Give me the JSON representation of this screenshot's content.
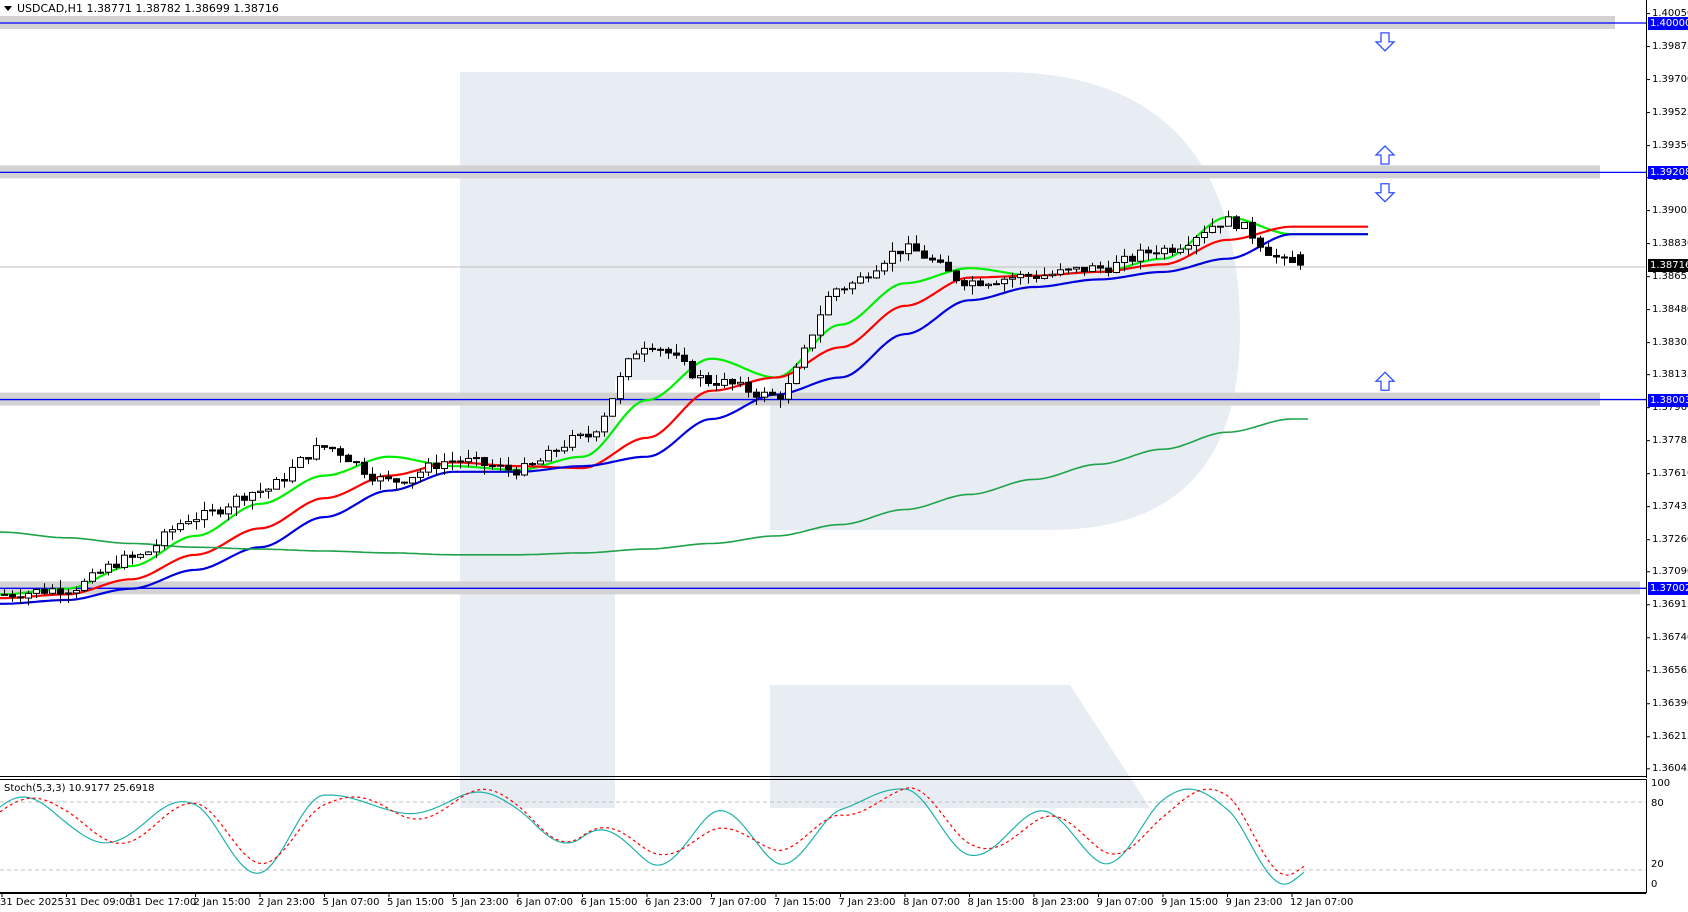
{
  "header": {
    "symbol": "USDCAD,H1",
    "open": "1.38771",
    "high": "1.38782",
    "low": "1.38699",
    "close": "1.38716",
    "text": "USDCAD,H1  1.38771 1.38782 1.38699 1.38716"
  },
  "stochastic": {
    "label": "Stoch(5,3,3) 10.9177 25.6918",
    "name": "Stoch(5,3,3)",
    "main": "10.9177",
    "signal": "25.6918",
    "levels": [
      "100",
      "80",
      "20",
      "0"
    ]
  },
  "colors": {
    "level_line": "#0000ff",
    "level_band": "#d3d3d3",
    "tag_blue": "#0000ff",
    "tag_current": "#000000",
    "ma_fast": "#00ee00",
    "ma_mid": "#ff0000",
    "ma_slow": "#0000dd",
    "ma_long": "#1fa34a",
    "stoch_main": "#20b2aa",
    "stoch_signal": "#ff0000",
    "watermark": "#e8ecf3"
  },
  "price_axis": {
    "ticks": [
      "1.40050",
      "1.39875",
      "1.39700",
      "1.39525",
      "1.39350",
      "1.39180",
      "1.39005",
      "1.38830",
      "1.38655",
      "1.38480",
      "1.38305",
      "1.38135",
      "1.37960",
      "1.37785",
      "1.37610",
      "1.37435",
      "1.37260",
      "1.37090",
      "1.36915",
      "1.36740",
      "1.36565",
      "1.36390",
      "1.36215",
      "1.36045"
    ],
    "levels": [
      {
        "value": "1.40000"
      },
      {
        "value": "1.39208"
      },
      {
        "value": "1.38003"
      },
      {
        "value": "1.37002"
      }
    ],
    "current_price": "1.38716"
  },
  "time_axis": {
    "labels": [
      "31 Dec 2025",
      "31 Dec 09:00",
      "31 Dec 17:00",
      "2 Jan 15:00",
      "2 Jan 23:00",
      "5 Jan 07:00",
      "5 Jan 15:00",
      "5 Jan 23:00",
      "6 Jan 07:00",
      "6 Jan 15:00",
      "6 Jan 23:00",
      "7 Jan 07:00",
      "7 Jan 15:00",
      "7 Jan 23:00",
      "8 Jan 07:00",
      "8 Jan 15:00",
      "8 Jan 23:00",
      "9 Jan 07:00",
      "9 Jan 15:00",
      "9 Jan 23:00",
      "12 Jan 07:00"
    ]
  },
  "arrows": [
    {
      "direction": "down",
      "price": "1.39900"
    },
    {
      "direction": "up",
      "price": "1.39300"
    },
    {
      "direction": "down",
      "price": "1.39100"
    },
    {
      "direction": "up",
      "price": "1.38100"
    }
  ],
  "chart_data": {
    "type": "candlestick",
    "title": "USDCAD,H1",
    "xlabel": "",
    "ylabel": "Price",
    "ylim": [
      1.36045,
      1.4005
    ],
    "grid": false,
    "x": [
      "31 Dec 2025",
      "31 Dec 09:00",
      "31 Dec 17:00",
      "2 Jan 15:00",
      "2 Jan 23:00",
      "5 Jan 07:00",
      "5 Jan 15:00",
      "5 Jan 23:00",
      "6 Jan 07:00",
      "6 Jan 15:00",
      "6 Jan 23:00",
      "7 Jan 07:00",
      "7 Jan 15:00",
      "7 Jan 23:00",
      "8 Jan 07:00",
      "8 Jan 15:00",
      "8 Jan 23:00",
      "9 Jan 07:00",
      "9 Jan 15:00",
      "9 Jan 23:00",
      "12 Jan 07:00"
    ],
    "close_at_labels": [
      1.3697,
      1.37,
      1.3716,
      1.3738,
      1.3752,
      1.3775,
      1.3757,
      1.3768,
      1.3763,
      1.378,
      1.383,
      1.381,
      1.3802,
      1.386,
      1.388,
      1.3863,
      1.3866,
      1.387,
      1.388,
      1.3895,
      1.3872
    ],
    "horizontal_levels": [
      1.4,
      1.39208,
      1.38003,
      1.37002
    ],
    "last": {
      "open": 1.38771,
      "high": 1.38782,
      "low": 1.38699,
      "close": 1.38716
    },
    "series": [
      {
        "name": "MA fast (green)",
        "values": [
          1.3697,
          1.37,
          1.3712,
          1.3728,
          1.3745,
          1.376,
          1.377,
          1.3765,
          1.3763,
          1.377,
          1.38,
          1.3822,
          1.3812,
          1.384,
          1.3862,
          1.387,
          1.3866,
          1.3868,
          1.3875,
          1.3897,
          1.3888
        ]
      },
      {
        "name": "MA mid (red)",
        "values": [
          1.3695,
          1.3697,
          1.3705,
          1.3718,
          1.3732,
          1.3748,
          1.376,
          1.3767,
          1.3765,
          1.3764,
          1.378,
          1.3805,
          1.3812,
          1.3828,
          1.385,
          1.3865,
          1.3866,
          1.3868,
          1.3872,
          1.3885,
          1.3892
        ]
      },
      {
        "name": "MA slow (blue)",
        "values": [
          1.3692,
          1.3694,
          1.37,
          1.371,
          1.3722,
          1.3738,
          1.3752,
          1.3762,
          1.3762,
          1.3765,
          1.377,
          1.379,
          1.3803,
          1.3812,
          1.3835,
          1.3853,
          1.386,
          1.3864,
          1.3868,
          1.3875,
          1.3888
        ]
      },
      {
        "name": "MA long (dark green)",
        "values": [
          1.373,
          1.3727,
          1.3724,
          1.3722,
          1.3721,
          1.372,
          1.3719,
          1.3718,
          1.3718,
          1.3719,
          1.3721,
          1.3724,
          1.3728,
          1.3734,
          1.3742,
          1.375,
          1.3758,
          1.3766,
          1.3774,
          1.3783,
          1.379
        ]
      }
    ],
    "stochastic": {
      "ylim": [
        0,
        100
      ],
      "levels": [
        20,
        80
      ],
      "main": [
        78,
        58,
        62,
        66,
        30,
        72,
        92,
        72,
        85,
        45,
        22,
        80,
        10,
        92,
        78,
        48,
        58,
        35,
        80,
        75,
        10.9177
      ],
      "signal": [
        82,
        62,
        60,
        64,
        40,
        65,
        88,
        76,
        80,
        55,
        25,
        70,
        18,
        88,
        80,
        55,
        55,
        40,
        72,
        80,
        25.6918
      ]
    }
  }
}
